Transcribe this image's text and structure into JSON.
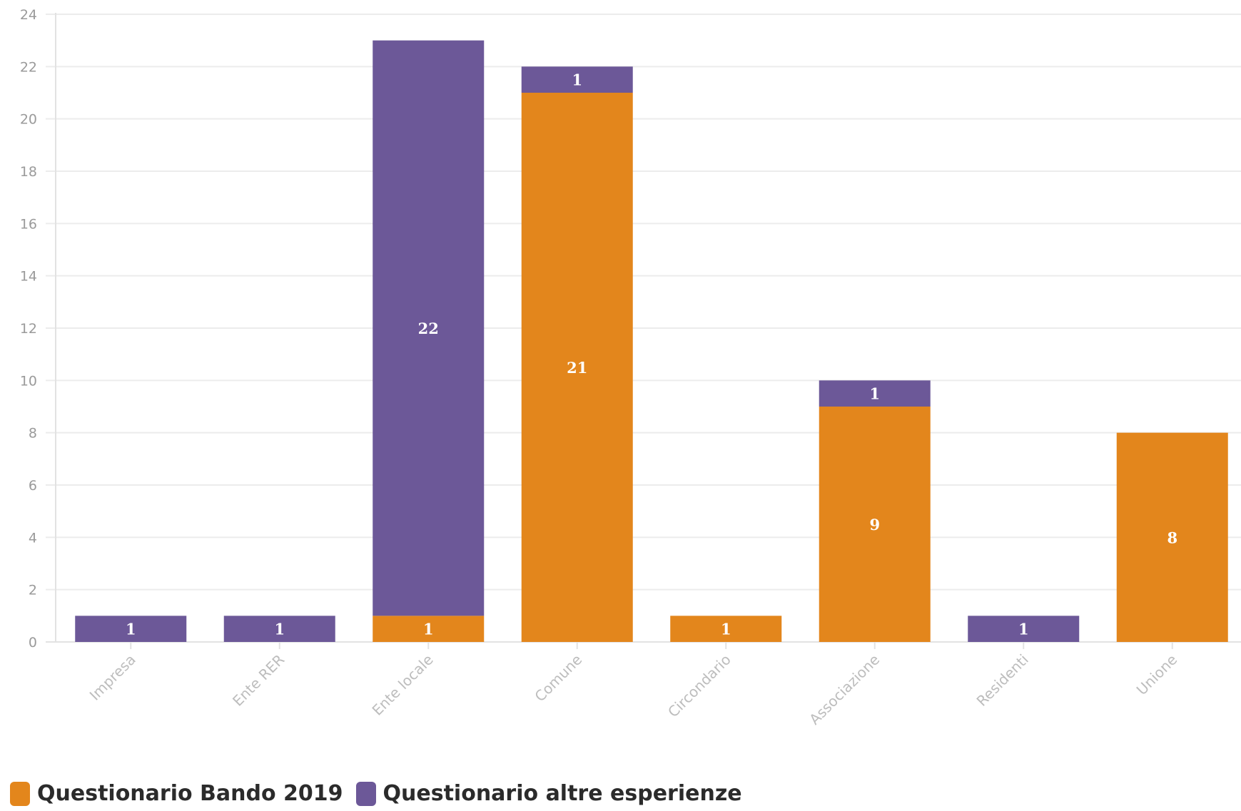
{
  "chart_data": {
    "type": "bar",
    "stacked": true,
    "categories": [
      "Impresa",
      "Ente RER",
      "Ente locale",
      "Comune",
      "Circondario",
      "Associazione",
      "Residenti",
      "Unione"
    ],
    "series": [
      {
        "name": "Questionario Bando 2019",
        "color": "#e3861c",
        "values": [
          0,
          0,
          1,
          21,
          1,
          9,
          0,
          8
        ]
      },
      {
        "name": "Questionario altre esperienze",
        "color": "#6c5898",
        "values": [
          1,
          1,
          22,
          1,
          0,
          1,
          1,
          0
        ]
      }
    ],
    "yticks": [
      0,
      2,
      4,
      6,
      8,
      10,
      12,
      14,
      16,
      18,
      20,
      22,
      24
    ],
    "ylim": [
      0,
      24
    ],
    "title": "",
    "xlabel": "",
    "ylabel": "",
    "grid": true,
    "legend_position": "bottom-left",
    "data_labels": true
  },
  "legend": {
    "items": [
      {
        "label": "Questionario Bando 2019",
        "color": "#e3861c"
      },
      {
        "label": "Questionario altre esperienze",
        "color": "#6c5898"
      }
    ]
  }
}
